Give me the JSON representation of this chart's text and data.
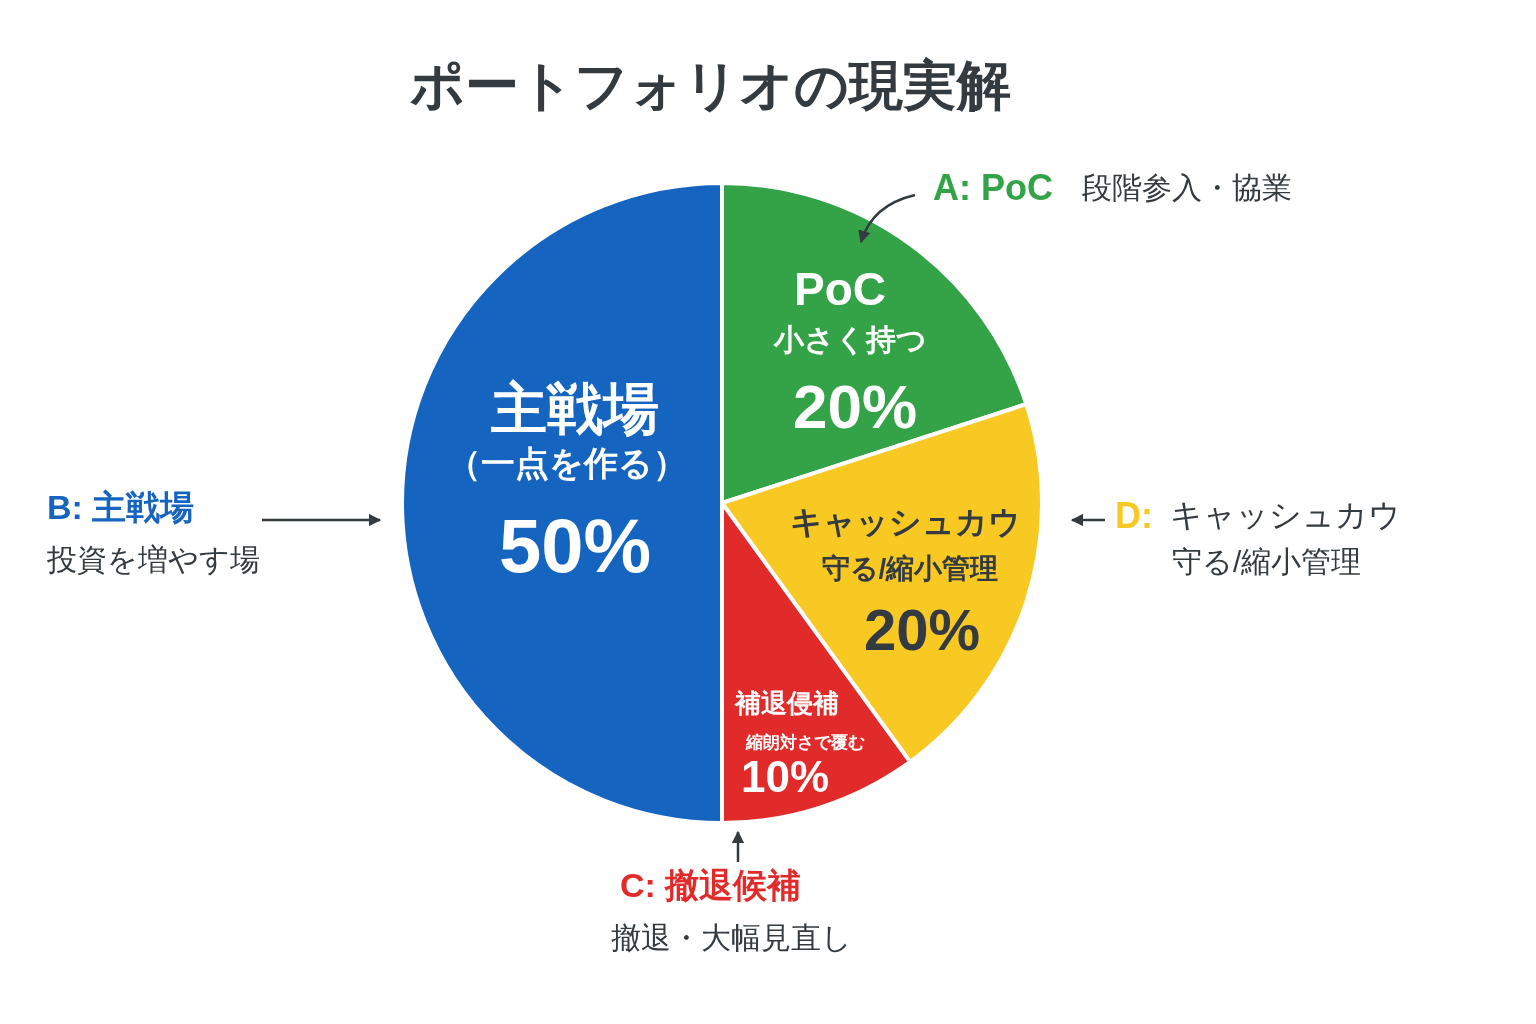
{
  "chart_data": {
    "type": "pie",
    "title": "ポートフォリオの現実解",
    "categories": [
      "PoC",
      "キャッシュカウ",
      "補退侵補",
      "主戦場"
    ],
    "values": [
      20,
      20,
      10,
      50
    ],
    "colors": [
      "#34a247",
      "#f9c923",
      "#e12a2a",
      "#1565c0"
    ],
    "value_labels": [
      "20%",
      "20%",
      "10%",
      "50%"
    ],
    "annotations": [
      "小さく持つ",
      "守る/縮小管理",
      "縮朗対さで覆む",
      "（一点を作る）",
      "A: PoC",
      "段階参入・協業",
      "D:",
      "キャッシュカウ",
      "守る/縮小管理",
      "C: 撤退候補",
      "撤退・大幅見直し",
      "B: 主戦場",
      "投資を増やす場"
    ]
  }
}
